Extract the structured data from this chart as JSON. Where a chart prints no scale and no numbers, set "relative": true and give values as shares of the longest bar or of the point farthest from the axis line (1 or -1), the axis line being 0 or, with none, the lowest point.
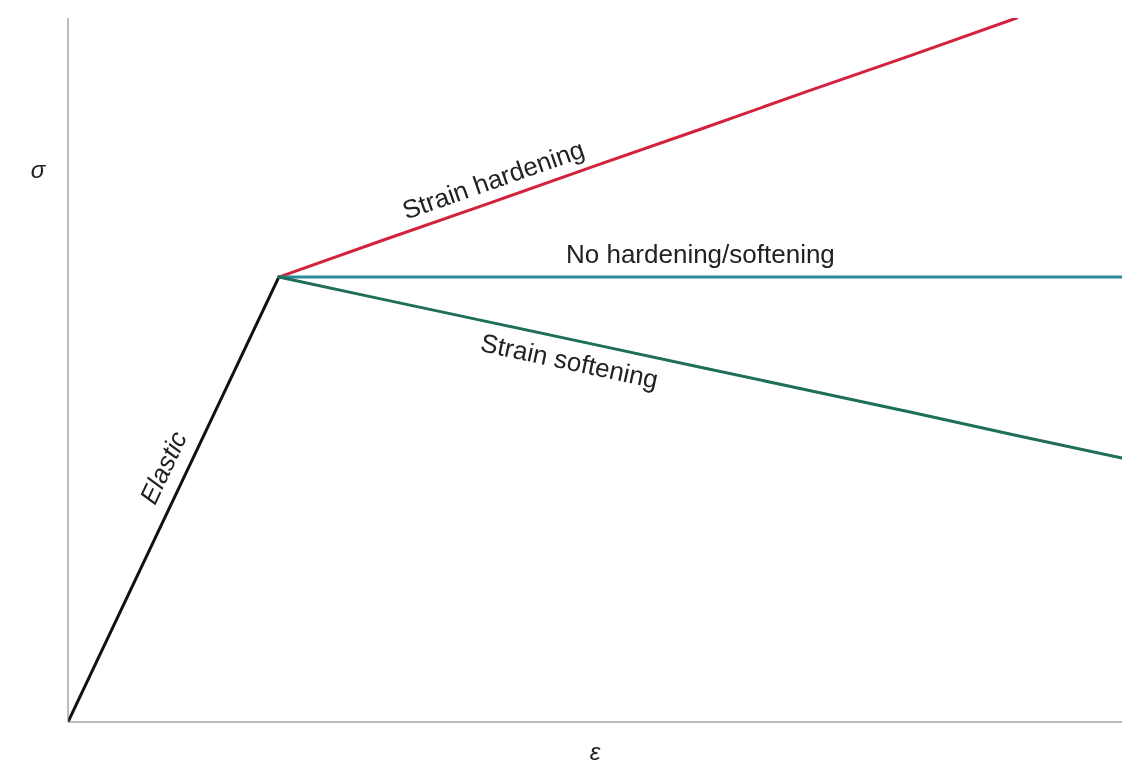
{
  "chart_data": {
    "type": "line",
    "relative": true,
    "xlabel": "ε",
    "ylabel": "σ",
    "marker": "none",
    "line_style": "solid",
    "categories": [
      null,
      null,
      null,
      null,
      null,
      null,
      null,
      null,
      null,
      null,
      null
    ],
    "series": [
      {
        "name": "Elastic",
        "color": "#111111",
        "values": [
          0,
          0.316,
          0.632,
          null,
          null,
          null,
          null,
          null,
          null,
          null,
          null
        ]
      },
      {
        "name": "Strain hardening",
        "color": "#d4213d",
        "values": [
          null,
          null,
          0.632,
          0.685,
          0.737,
          0.79,
          0.842,
          0.895,
          0.947,
          1,
          null
        ]
      },
      {
        "name": "No hardening/softening",
        "color": "#2a8a9a",
        "values": [
          null,
          null,
          0.632,
          0.632,
          0.632,
          0.632,
          0.632,
          0.632,
          0.632,
          0.632,
          0.632
        ]
      },
      {
        "name": "Strain softening",
        "color": "#1f6e5a",
        "values": [
          null,
          null,
          0.632,
          0.6,
          0.568,
          0.536,
          0.504,
          0.472,
          0.44,
          0.407,
          0.375
        ]
      }
    ]
  }
}
